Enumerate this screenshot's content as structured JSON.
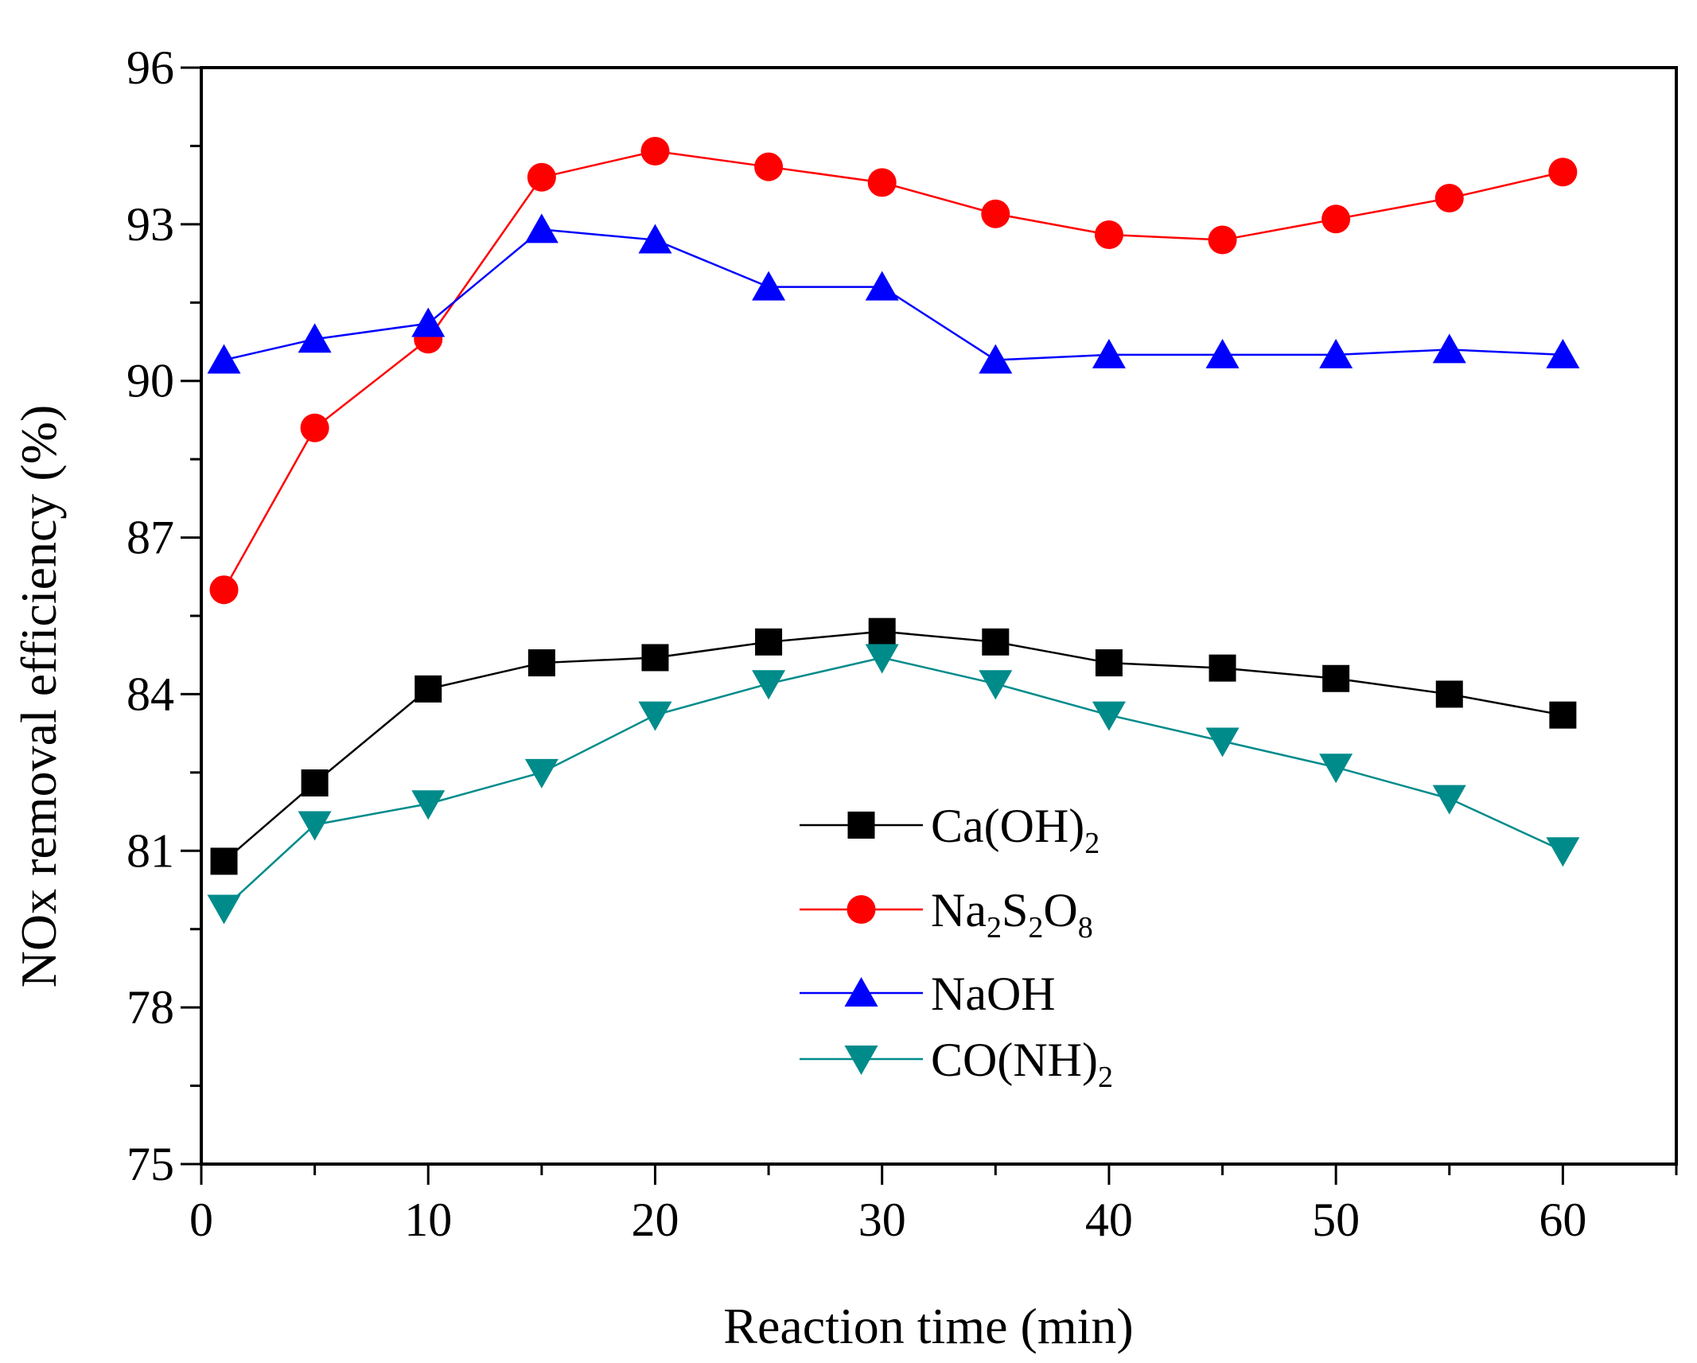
{
  "chart_data": {
    "type": "line",
    "title": "",
    "xlabel": "Reaction time (min)",
    "ylabel": "NOx removal efficiency (%)",
    "xlim": [
      0,
      65
    ],
    "ylim": [
      75,
      96
    ],
    "xticks": [
      0,
      10,
      20,
      30,
      40,
      50,
      60
    ],
    "yticks": [
      75,
      78,
      81,
      84,
      87,
      90,
      93,
      96
    ],
    "grid": false,
    "legend_position": "lower-center",
    "x": [
      1,
      5,
      10,
      15,
      20,
      25,
      30,
      35,
      40,
      45,
      50,
      55,
      60
    ],
    "series": [
      {
        "name": "Ca(OH)2",
        "label_main": "Ca(OH)",
        "label_sub": "2",
        "label_tail": "",
        "marker": "square",
        "color": "#000000",
        "values": [
          80.8,
          82.3,
          84.1,
          84.6,
          84.7,
          85.0,
          85.2,
          85.0,
          84.6,
          84.5,
          84.3,
          84.0,
          83.6
        ]
      },
      {
        "name": "Na2S2O8",
        "marker": "circle",
        "color": "#ff0000",
        "values": [
          86.0,
          89.1,
          90.8,
          93.9,
          94.4,
          94.1,
          93.8,
          93.2,
          92.8,
          92.7,
          93.1,
          93.5,
          94.0
        ]
      },
      {
        "name": "NaOH",
        "label_main": "NaOH",
        "label_sub": "",
        "label_tail": "",
        "marker": "triangle-up",
        "color": "#0000ff",
        "values": [
          90.4,
          90.8,
          91.1,
          92.9,
          92.7,
          91.8,
          91.8,
          90.4,
          90.5,
          90.5,
          90.5,
          90.6,
          90.5
        ]
      },
      {
        "name": "CO(NH)2",
        "label_main": "CO(NH)",
        "label_sub": "2",
        "label_tail": "",
        "marker": "triangle-down",
        "color": "#008b8b",
        "values": [
          79.9,
          81.5,
          81.9,
          82.5,
          83.6,
          84.2,
          84.7,
          84.2,
          83.6,
          83.1,
          82.6,
          82.0,
          81.0
        ]
      }
    ],
    "na2s2o8_label_parts": [
      "Na",
      "2",
      "S",
      "2",
      "O",
      "8"
    ]
  }
}
